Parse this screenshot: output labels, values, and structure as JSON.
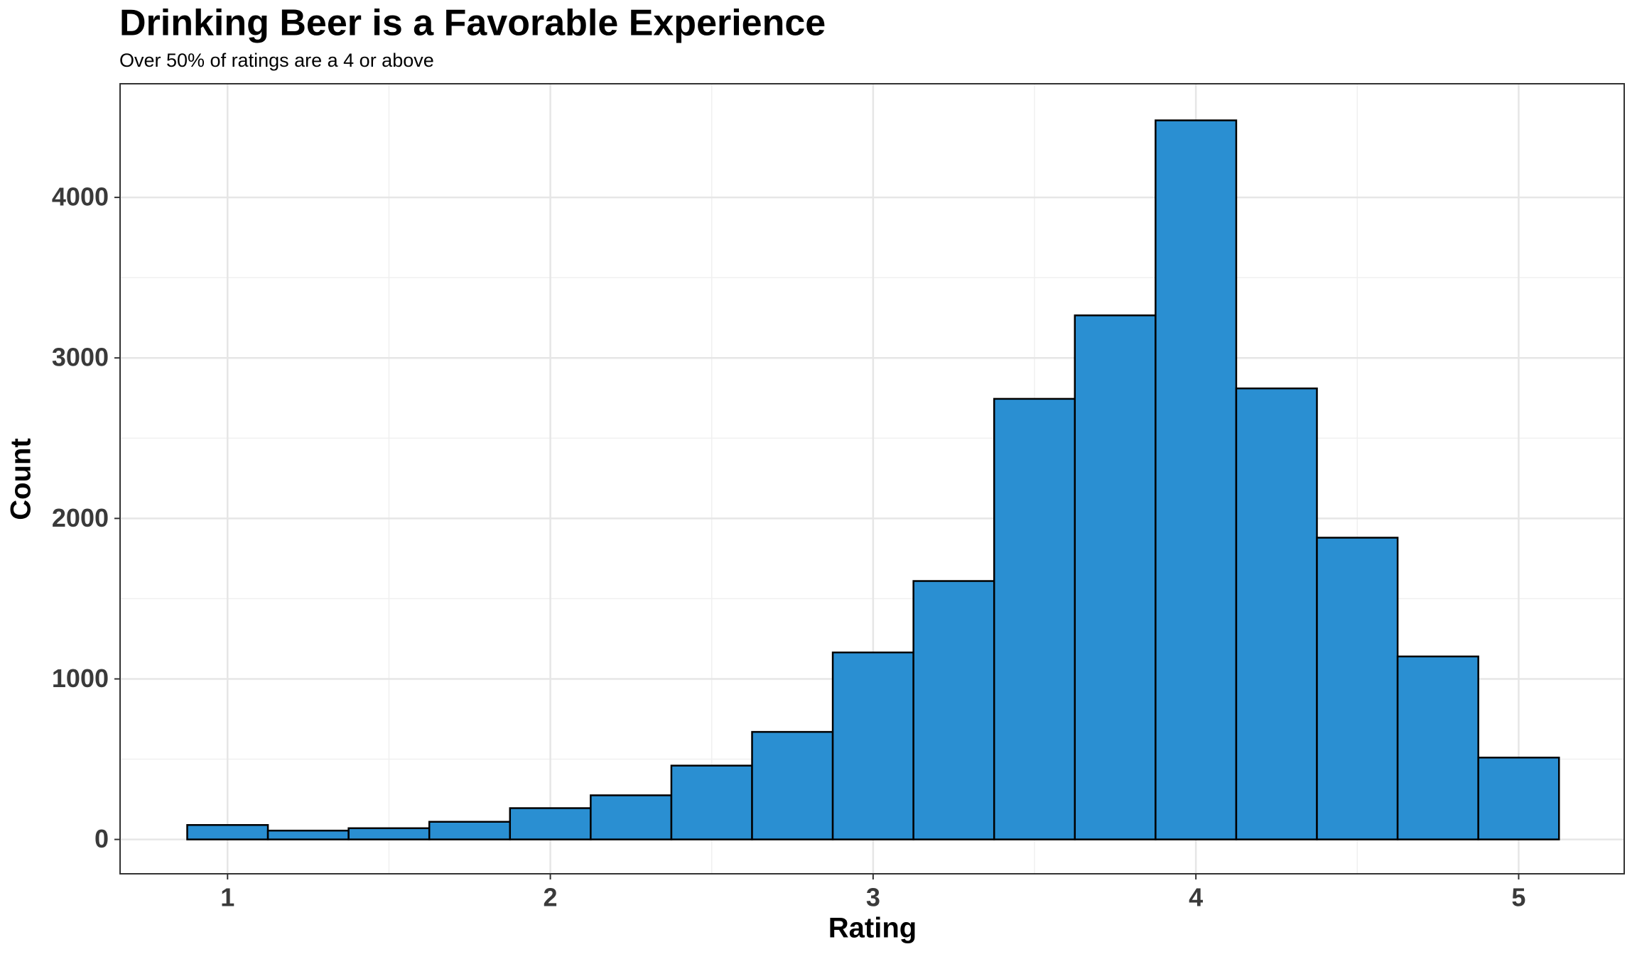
{
  "chart_data": {
    "type": "histogram",
    "title": "Drinking Beer is a Favorable Experience",
    "subtitle": "Over 50% of ratings are a 4 or above",
    "x_label": "Rating",
    "y_label": "Count",
    "bins": [
      0.875,
      1.125,
      1.375,
      1.625,
      1.875,
      2.125,
      2.375,
      2.625,
      2.875,
      3.125,
      3.375,
      3.625,
      3.875,
      4.125,
      4.375,
      4.625,
      4.875,
      5.125
    ],
    "values": [
      90,
      55,
      70,
      110,
      195,
      275,
      460,
      670,
      1165,
      1610,
      2745,
      3265,
      4480,
      2810,
      1880,
      1140,
      510
    ],
    "color": "#2a8fd2",
    "edgecolor": "#000000",
    "xlim": [
      0.667,
      5.327
    ],
    "xticks": [
      1,
      2,
      3,
      4,
      5
    ],
    "ylim": [
      -214,
      4708
    ],
    "yticks": [
      0,
      1000,
      2000,
      3000,
      4000
    ],
    "grid": true
  }
}
